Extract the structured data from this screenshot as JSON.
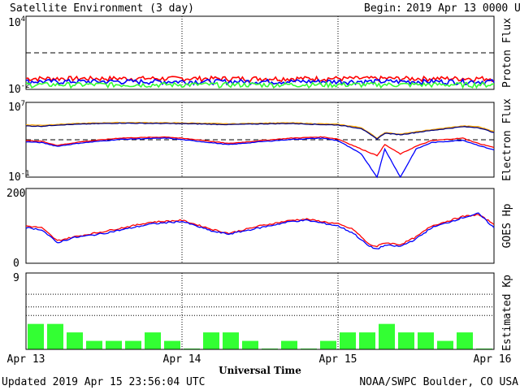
{
  "header": {
    "title": "Satellite Environment (3 day)",
    "begin_label": "Begin:",
    "begin_value": "2019 Apr 13 0000 UTC"
  },
  "footer": {
    "updated": "Updated 2019 Apr 15 23:56:04 UTC",
    "credit": "NOAA/SWPC Boulder, CO USA"
  },
  "colors": {
    "red": "#ff0000",
    "blue": "#0000ff",
    "green": "#33ff33",
    "orange": "#ffa500",
    "navy": "#000080",
    "bar": "#33ff33"
  },
  "chart_data": [
    {
      "type": "line",
      "panel": "proton-flux",
      "ylabel": "Proton Flux",
      "yscale": "log",
      "ylim": [
        0.01,
        10000
      ],
      "ytick_labels": [
        {
          "base": "10",
          "exp": "4"
        },
        {
          "base": "10",
          "exp": "-2"
        }
      ],
      "reference_line": 10,
      "x_range_days": [
        0,
        3
      ],
      "series": [
        {
          "color": "#ff0000",
          "x": [
            0,
            0.5,
            1,
            1.5,
            2,
            2.5,
            3
          ],
          "y": [
            0.08,
            0.08,
            0.08,
            0.08,
            0.08,
            0.08,
            0.08
          ]
        },
        {
          "color": "#0000ff",
          "x": [
            0,
            0.5,
            1,
            1.5,
            2,
            2.5,
            3
          ],
          "y": [
            0.045,
            0.045,
            0.045,
            0.045,
            0.045,
            0.045,
            0.045
          ]
        },
        {
          "color": "#33ff33",
          "x": [
            0,
            0.5,
            1,
            1.5,
            2,
            2.5,
            3
          ],
          "y": [
            0.025,
            0.025,
            0.025,
            0.025,
            0.025,
            0.025,
            0.025
          ]
        }
      ]
    },
    {
      "type": "line",
      "panel": "electron-flux",
      "ylabel": "Electron Flux",
      "yscale": "log",
      "ylim": [
        0.1,
        10000000
      ],
      "ytick_labels": [
        {
          "base": "10",
          "exp": "7"
        },
        {
          "base": "10",
          "exp": "-1"
        }
      ],
      "reference_line": 1000,
      "x_range_days": [
        0,
        3
      ],
      "series": [
        {
          "color": "#ffa500",
          "x": [
            0,
            0.1,
            0.2,
            0.4,
            0.6,
            0.9,
            1.1,
            1.3,
            1.5,
            1.7,
            1.9,
            2.0,
            2.15,
            2.25,
            2.3,
            2.4,
            2.5,
            2.6,
            2.8,
            2.9,
            3.0
          ],
          "y": [
            40000,
            35000,
            45000,
            60000,
            70000,
            65000,
            60000,
            50000,
            60000,
            65000,
            50000,
            45000,
            20000,
            1500,
            6000,
            4000,
            7000,
            12000,
            30000,
            25000,
            8000
          ]
        },
        {
          "color": "#000080",
          "x": [
            0,
            0.1,
            0.2,
            0.4,
            0.6,
            0.9,
            1.1,
            1.3,
            1.5,
            1.7,
            1.9,
            2.0,
            2.15,
            2.25,
            2.3,
            2.4,
            2.5,
            2.6,
            2.8,
            2.9,
            3.0
          ],
          "y": [
            30000,
            28000,
            38000,
            50000,
            60000,
            55000,
            50000,
            42000,
            50000,
            55000,
            42000,
            38000,
            16000,
            1200,
            5000,
            3500,
            6000,
            10000,
            25000,
            20000,
            6000
          ]
        },
        {
          "color": "#ff0000",
          "x": [
            0,
            0.1,
            0.2,
            0.35,
            0.6,
            0.9,
            1.1,
            1.3,
            1.5,
            1.7,
            1.9,
            2.0,
            2.15,
            2.25,
            2.3,
            2.4,
            2.5,
            2.6,
            2.8,
            2.9,
            3.0
          ],
          "y": [
            800,
            700,
            250,
            600,
            1500,
            2000,
            1000,
            400,
            800,
            1500,
            2000,
            1200,
            100,
            20,
            300,
            30,
            200,
            800,
            1500,
            400,
            150
          ]
        },
        {
          "color": "#0000ff",
          "x": [
            0,
            0.1,
            0.2,
            0.35,
            0.6,
            0.9,
            1.1,
            1.3,
            1.5,
            1.7,
            1.9,
            2.0,
            2.15,
            2.25,
            2.3,
            2.4,
            2.5,
            2.6,
            2.8,
            2.9,
            3.0
          ],
          "y": [
            600,
            500,
            200,
            450,
            1100,
            1500,
            700,
            300,
            600,
            1100,
            1500,
            800,
            30,
            0.1,
            100,
            0.1,
            100,
            500,
            900,
            250,
            80
          ]
        }
      ]
    },
    {
      "type": "line",
      "panel": "goes-hp",
      "ylabel": "GOES Hp",
      "ylim": [
        0,
        200
      ],
      "ytick_labels": [
        "200",
        "0"
      ],
      "x_range_days": [
        0,
        3
      ],
      "series": [
        {
          "color": "#ff0000",
          "x": [
            0,
            0.1,
            0.2,
            0.3,
            0.5,
            0.8,
            1.0,
            1.2,
            1.3,
            1.5,
            1.7,
            1.8,
            2.0,
            2.1,
            2.2,
            2.25,
            2.3,
            2.4,
            2.5,
            2.6,
            2.8,
            2.9,
            3.0
          ],
          "y": [
            100,
            95,
            60,
            70,
            85,
            110,
            115,
            90,
            80,
            100,
            115,
            118,
            105,
            90,
            50,
            45,
            55,
            50,
            70,
            100,
            125,
            130,
            105
          ]
        },
        {
          "color": "#0000ff",
          "x": [
            0,
            0.1,
            0.2,
            0.3,
            0.5,
            0.8,
            1.0,
            1.2,
            1.3,
            1.5,
            1.7,
            1.8,
            2.0,
            2.1,
            2.2,
            2.25,
            2.3,
            2.4,
            2.5,
            2.6,
            2.8,
            2.9,
            3.0
          ],
          "y": [
            95,
            90,
            55,
            68,
            80,
            105,
            112,
            85,
            78,
            95,
            112,
            115,
            100,
            80,
            45,
            38,
            48,
            45,
            65,
            95,
            122,
            133,
            95
          ]
        }
      ]
    },
    {
      "type": "bar",
      "panel": "estimated-kp",
      "ylabel": "Estimated Kp",
      "ylim": [
        0,
        9
      ],
      "ytick_labels": [
        "9"
      ],
      "bin_hours": 3,
      "values": [
        3,
        3,
        2,
        1,
        1,
        1,
        2,
        1,
        0.1,
        2,
        2,
        1,
        0.1,
        1,
        0.1,
        1,
        2,
        2,
        3,
        2,
        2,
        1,
        2,
        0.1
      ]
    }
  ],
  "x_axis": {
    "tick_labels": [
      "Apr 13",
      "Apr 14",
      "Apr 15",
      "Apr 16"
    ],
    "label": "Universal Time"
  }
}
